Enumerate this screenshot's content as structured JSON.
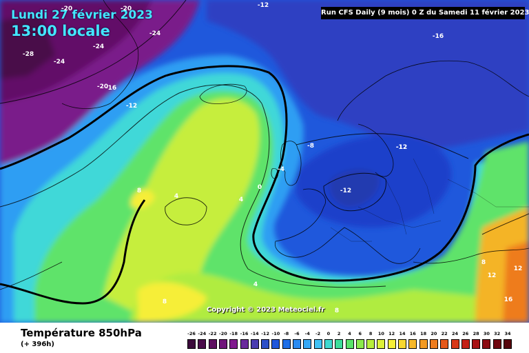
{
  "header": {
    "date": "Lundi 27 février 2023",
    "time": "13:00 locale",
    "run": "Run CFS Daily (9 mois) 0 Z du Samedi 11 février 2023",
    "copyright": "Copyright © 2023 Meteociel.fr"
  },
  "footer": {
    "title": "Température 850hPa",
    "subtitle": "(+ 396h)"
  },
  "map_labels": [
    "-20",
    "-20",
    "-12",
    "-24",
    "-24",
    "-28",
    "-24",
    "-16",
    "-20",
    "-12",
    "-16",
    "-12",
    "-8",
    "-12",
    "-4",
    "0",
    "4",
    "8",
    "4",
    "-12",
    "8",
    "12",
    "4",
    "8",
    "12",
    "16",
    "8"
  ],
  "legend": {
    "ticks": [
      "-26",
      "-24",
      "-22",
      "-20",
      "-18",
      "-16",
      "-14",
      "-12",
      "-10",
      "-8",
      "-6",
      "-4",
      "-2",
      "0",
      "2",
      "4",
      "6",
      "8",
      "10",
      "12",
      "14",
      "16",
      "18",
      "20",
      "22",
      "24",
      "26",
      "28",
      "30",
      "32",
      "34"
    ],
    "colors": [
      "#3a0a3a",
      "#4a0c4a",
      "#5e1060",
      "#70157a",
      "#801a8e",
      "#6a2a9c",
      "#4a3cb0",
      "#2c4fc8",
      "#1f56db",
      "#1f6fe8",
      "#2b8bf0",
      "#35a8f6",
      "#3fc2f5",
      "#3fd9d0",
      "#3bdd9a",
      "#58e46a",
      "#8bea4c",
      "#b8ee3c",
      "#ddf03a",
      "#f6ee38",
      "#f8d830",
      "#f6b828",
      "#f29a22",
      "#ee7c1e",
      "#e6581a",
      "#d83818",
      "#c42016",
      "#a81214",
      "#8c0c12",
      "#700810",
      "#56060c"
    ]
  }
}
